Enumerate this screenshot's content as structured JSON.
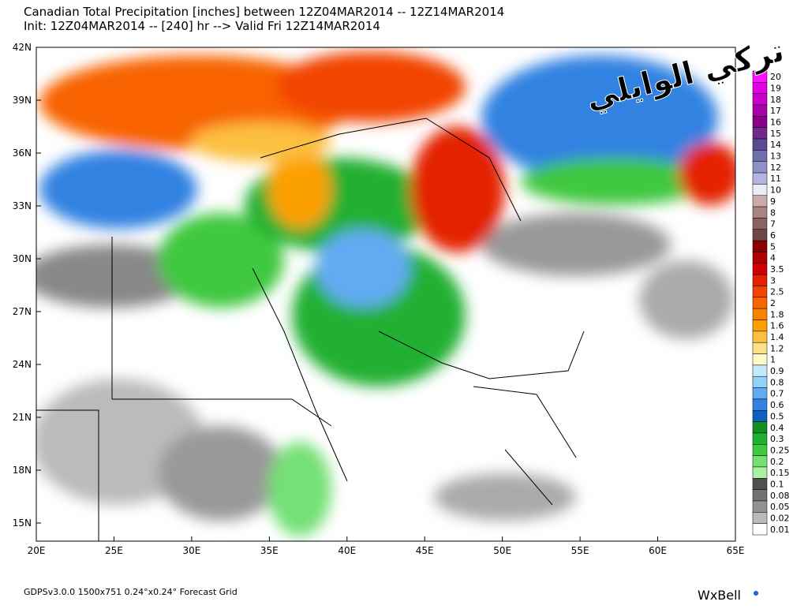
{
  "header": {
    "title": "Canadian Total Precipitation [inches] between 12Z04MAR2014 -- 12Z14MAR2014",
    "subtitle": "Init: 12Z04MAR2014 -- [240] hr --> Valid Fri 12Z14MAR2014"
  },
  "watermark": "تركي الوايلي",
  "lat_labels": [
    "42N",
    "39N",
    "36N",
    "33N",
    "30N",
    "27N",
    "24N",
    "21N",
    "18N",
    "15N"
  ],
  "lon_labels": [
    "20E",
    "25E",
    "30E",
    "35E",
    "40E",
    "45E",
    "50E",
    "55E",
    "60E",
    "65E"
  ],
  "colorbar": [
    {
      "label": "20",
      "color": "#ff10ff"
    },
    {
      "label": "19",
      "color": "#e600e6"
    },
    {
      "label": "18",
      "color": "#cc00cc"
    },
    {
      "label": "17",
      "color": "#aa00aa"
    },
    {
      "label": "16",
      "color": "#880088"
    },
    {
      "label": "15",
      "color": "#6e2a86"
    },
    {
      "label": "14",
      "color": "#5e4a92"
    },
    {
      "label": "13",
      "color": "#7070b0"
    },
    {
      "label": "12",
      "color": "#9090c8"
    },
    {
      "label": "11",
      "color": "#b4b4e2"
    },
    {
      "label": "10",
      "color": "#ececf4"
    },
    {
      "label": "9",
      "color": "#ccaaaa"
    },
    {
      "label": "8",
      "color": "#a88484"
    },
    {
      "label": "7",
      "color": "#8a6262"
    },
    {
      "label": "6",
      "color": "#6e4646"
    },
    {
      "label": "5",
      "color": "#8c0000"
    },
    {
      "label": "4",
      "color": "#b00000"
    },
    {
      "label": "3.5",
      "color": "#d00000"
    },
    {
      "label": "3",
      "color": "#e42000"
    },
    {
      "label": "2.5",
      "color": "#f24400"
    },
    {
      "label": "2",
      "color": "#f86400"
    },
    {
      "label": "1.8",
      "color": "#fa8200"
    },
    {
      "label": "1.6",
      "color": "#fca000"
    },
    {
      "label": "1.4",
      "color": "#fcc040"
    },
    {
      "label": "1.2",
      "color": "#fce088"
    },
    {
      "label": "1",
      "color": "#fffac8"
    },
    {
      "label": "0.9",
      "color": "#c4eafa"
    },
    {
      "label": "0.8",
      "color": "#94d2fa"
    },
    {
      "label": "0.7",
      "color": "#62aaf2"
    },
    {
      "label": "0.6",
      "color": "#3282e2"
    },
    {
      "label": "0.5",
      "color": "#1060c0"
    },
    {
      "label": "0.4",
      "color": "#109020"
    },
    {
      "label": "0.3",
      "color": "#20b030"
    },
    {
      "label": "0.25",
      "color": "#40c840"
    },
    {
      "label": "0.2",
      "color": "#74e074"
    },
    {
      "label": "0.15",
      "color": "#aaf0a2"
    },
    {
      "label": "0.1",
      "color": "#505050"
    },
    {
      "label": "0.08",
      "color": "#727272"
    },
    {
      "label": "0.05",
      "color": "#929292"
    },
    {
      "label": "0.02",
      "color": "#bababa"
    },
    {
      "label": "0.01",
      "color": "#ffffff"
    }
  ],
  "footer": "GDPSv3.0.0  1500x751  0.24°x0.24°  Forecast Grid",
  "brand": "WxBell"
}
